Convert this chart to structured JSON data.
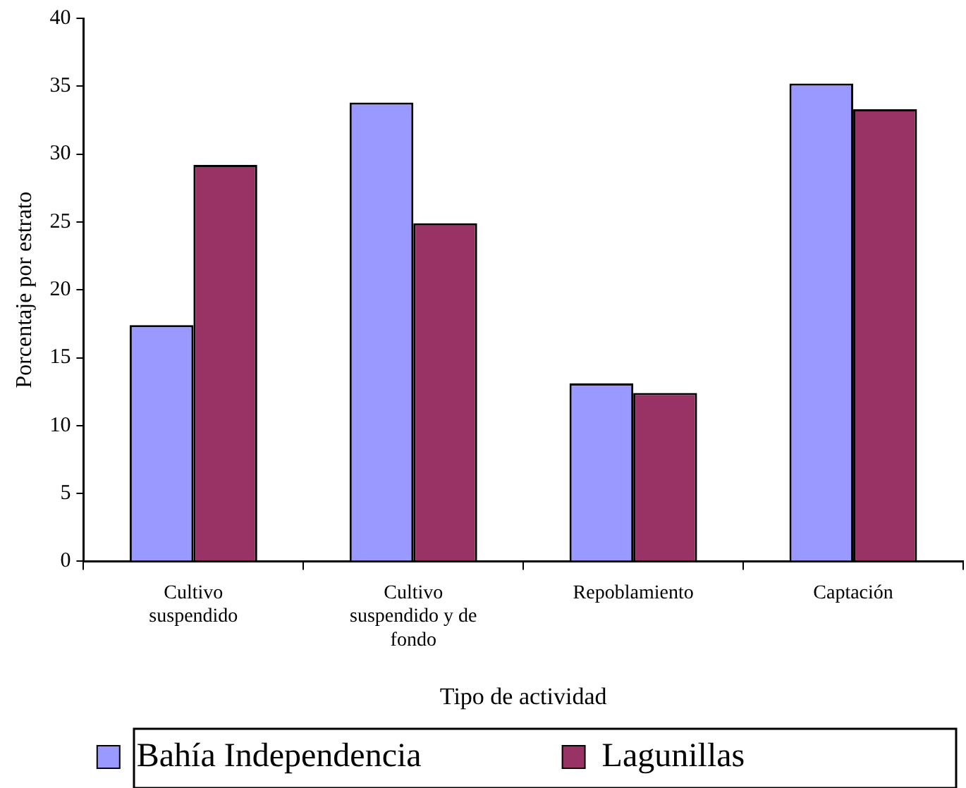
{
  "chart_data": {
    "type": "bar",
    "xlabel": "Tipo de actividad",
    "ylabel": "Porcentaje por estrato",
    "categories": [
      "Cultivo suspendido",
      "Cultivo suspendido y de fondo",
      "Repoblamiento",
      "Captación"
    ],
    "series": [
      {
        "name": "Bahía Independencia",
        "color": "#9999ff",
        "values": [
          17.4,
          33.8,
          13.1,
          35.2
        ]
      },
      {
        "name": "Lagunillas",
        "color": "#993366",
        "values": [
          29.2,
          24.9,
          12.4,
          33.3
        ]
      }
    ],
    "ylim": [
      0,
      40
    ],
    "yticks": [
      0,
      5,
      10,
      15,
      20,
      25,
      30,
      35,
      40
    ],
    "grid": false,
    "legend": "bottom"
  }
}
